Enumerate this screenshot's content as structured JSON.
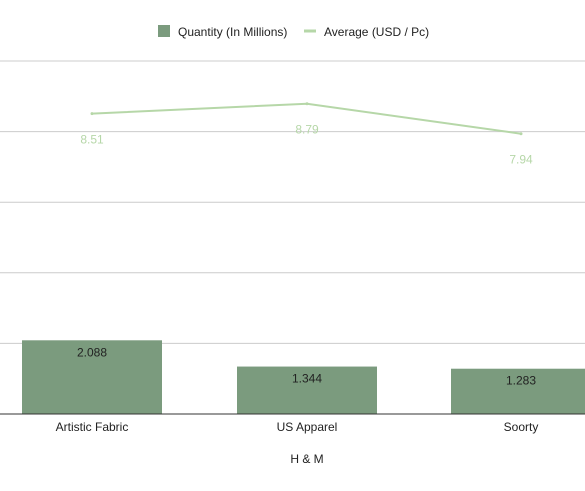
{
  "chart_data": {
    "type": "bar",
    "categories": [
      "Artistic Fabric",
      "US Apparel",
      "Soorty"
    ],
    "xlabel": "H & M",
    "legend_position": "top",
    "grid": true,
    "series": [
      {
        "name": "Quantity (In Millions)",
        "type": "bar",
        "values": [
          2.088,
          1.344,
          1.283
        ],
        "labels": [
          "2.088",
          "1.344",
          "1.283"
        ],
        "color": "#7b9b7e",
        "axis_range": [
          0,
          10
        ]
      },
      {
        "name": "Average (USD / Pc)",
        "type": "line",
        "values": [
          8.51,
          8.79,
          7.94
        ],
        "labels": [
          "8.51",
          "8.79",
          "7.94"
        ],
        "color": "#b6d7a8",
        "axis_range": [
          0,
          10
        ]
      }
    ]
  },
  "colors": {
    "grid": "#cccccc",
    "baseline": "#333333"
  }
}
